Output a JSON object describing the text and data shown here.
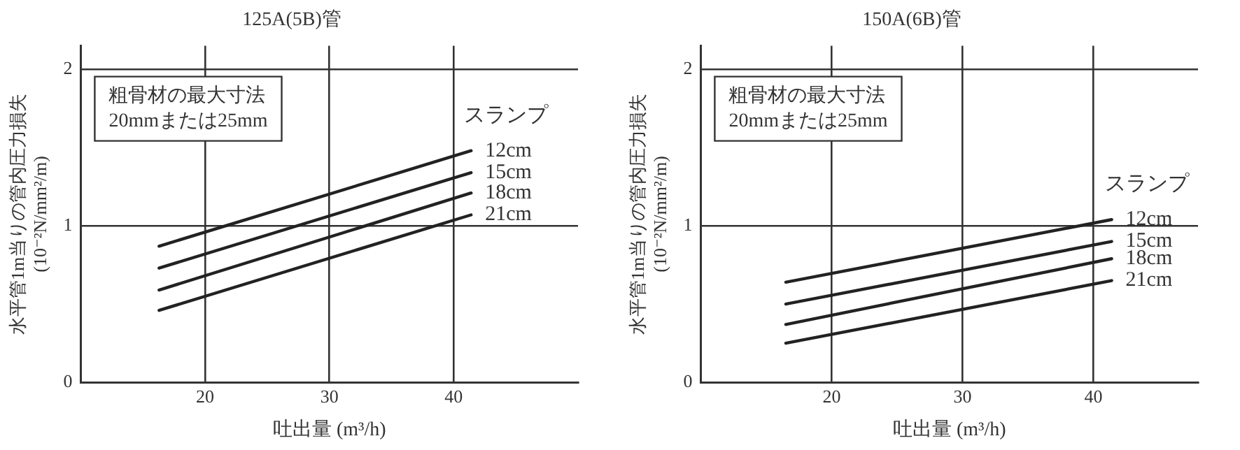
{
  "chart_data": [
    {
      "type": "line",
      "title": "125A(5B)管",
      "xlabel": "吐出量 (m³/h)",
      "ylabel": "水平管1m当りの管内圧力損失\n(10⁻²N/mm²/m)",
      "legend_title": "スランプ",
      "annotations": [
        "粗骨材の最大寸法\n20mmまたは25mm"
      ],
      "xlim": [
        10,
        50
      ],
      "xticks": [
        20,
        30,
        40
      ],
      "ylim": [
        0,
        2.15
      ],
      "yticks": [
        0,
        1,
        2
      ],
      "grid": true,
      "legend": false,
      "line_style": "solid",
      "marker": "none",
      "series": [
        {
          "name": "12cm",
          "color": "#222222",
          "x": [
            16.3,
            41.4
          ],
          "values": [
            0.87,
            1.48
          ]
        },
        {
          "name": "15cm",
          "color": "#222222",
          "x": [
            16.3,
            41.4
          ],
          "values": [
            0.73,
            1.34
          ]
        },
        {
          "name": "18cm",
          "color": "#222222",
          "x": [
            16.3,
            41.4
          ],
          "values": [
            0.59,
            1.21
          ]
        },
        {
          "name": "21cm",
          "color": "#222222",
          "x": [
            16.3,
            41.4
          ],
          "values": [
            0.46,
            1.07
          ]
        }
      ]
    },
    {
      "type": "line",
      "title": "150A(6B)管",
      "xlabel": "吐出量 (m³/h)",
      "ylabel": "水平管1m当りの管内圧力損失\n(10⁻²N/mm²/m)",
      "legend_title": "スランプ",
      "annotations": [
        "粗骨材の最大寸法\n20mmまたは25mm"
      ],
      "xlim": [
        10,
        48
      ],
      "xticks": [
        20,
        30,
        40
      ],
      "ylim": [
        0,
        2.15
      ],
      "yticks": [
        0,
        1,
        2
      ],
      "grid": true,
      "legend": false,
      "line_style": "solid",
      "marker": "none",
      "series": [
        {
          "name": "12cm",
          "color": "#222222",
          "x": [
            16.5,
            41.4
          ],
          "values": [
            0.64,
            1.04
          ]
        },
        {
          "name": "15cm",
          "color": "#222222",
          "x": [
            16.5,
            41.4
          ],
          "values": [
            0.5,
            0.9
          ]
        },
        {
          "name": "18cm",
          "color": "#222222",
          "x": [
            16.5,
            41.4
          ],
          "values": [
            0.37,
            0.79
          ]
        },
        {
          "name": "21cm",
          "color": "#222222",
          "x": [
            16.5,
            41.4
          ],
          "values": [
            0.25,
            0.65
          ]
        }
      ]
    }
  ]
}
